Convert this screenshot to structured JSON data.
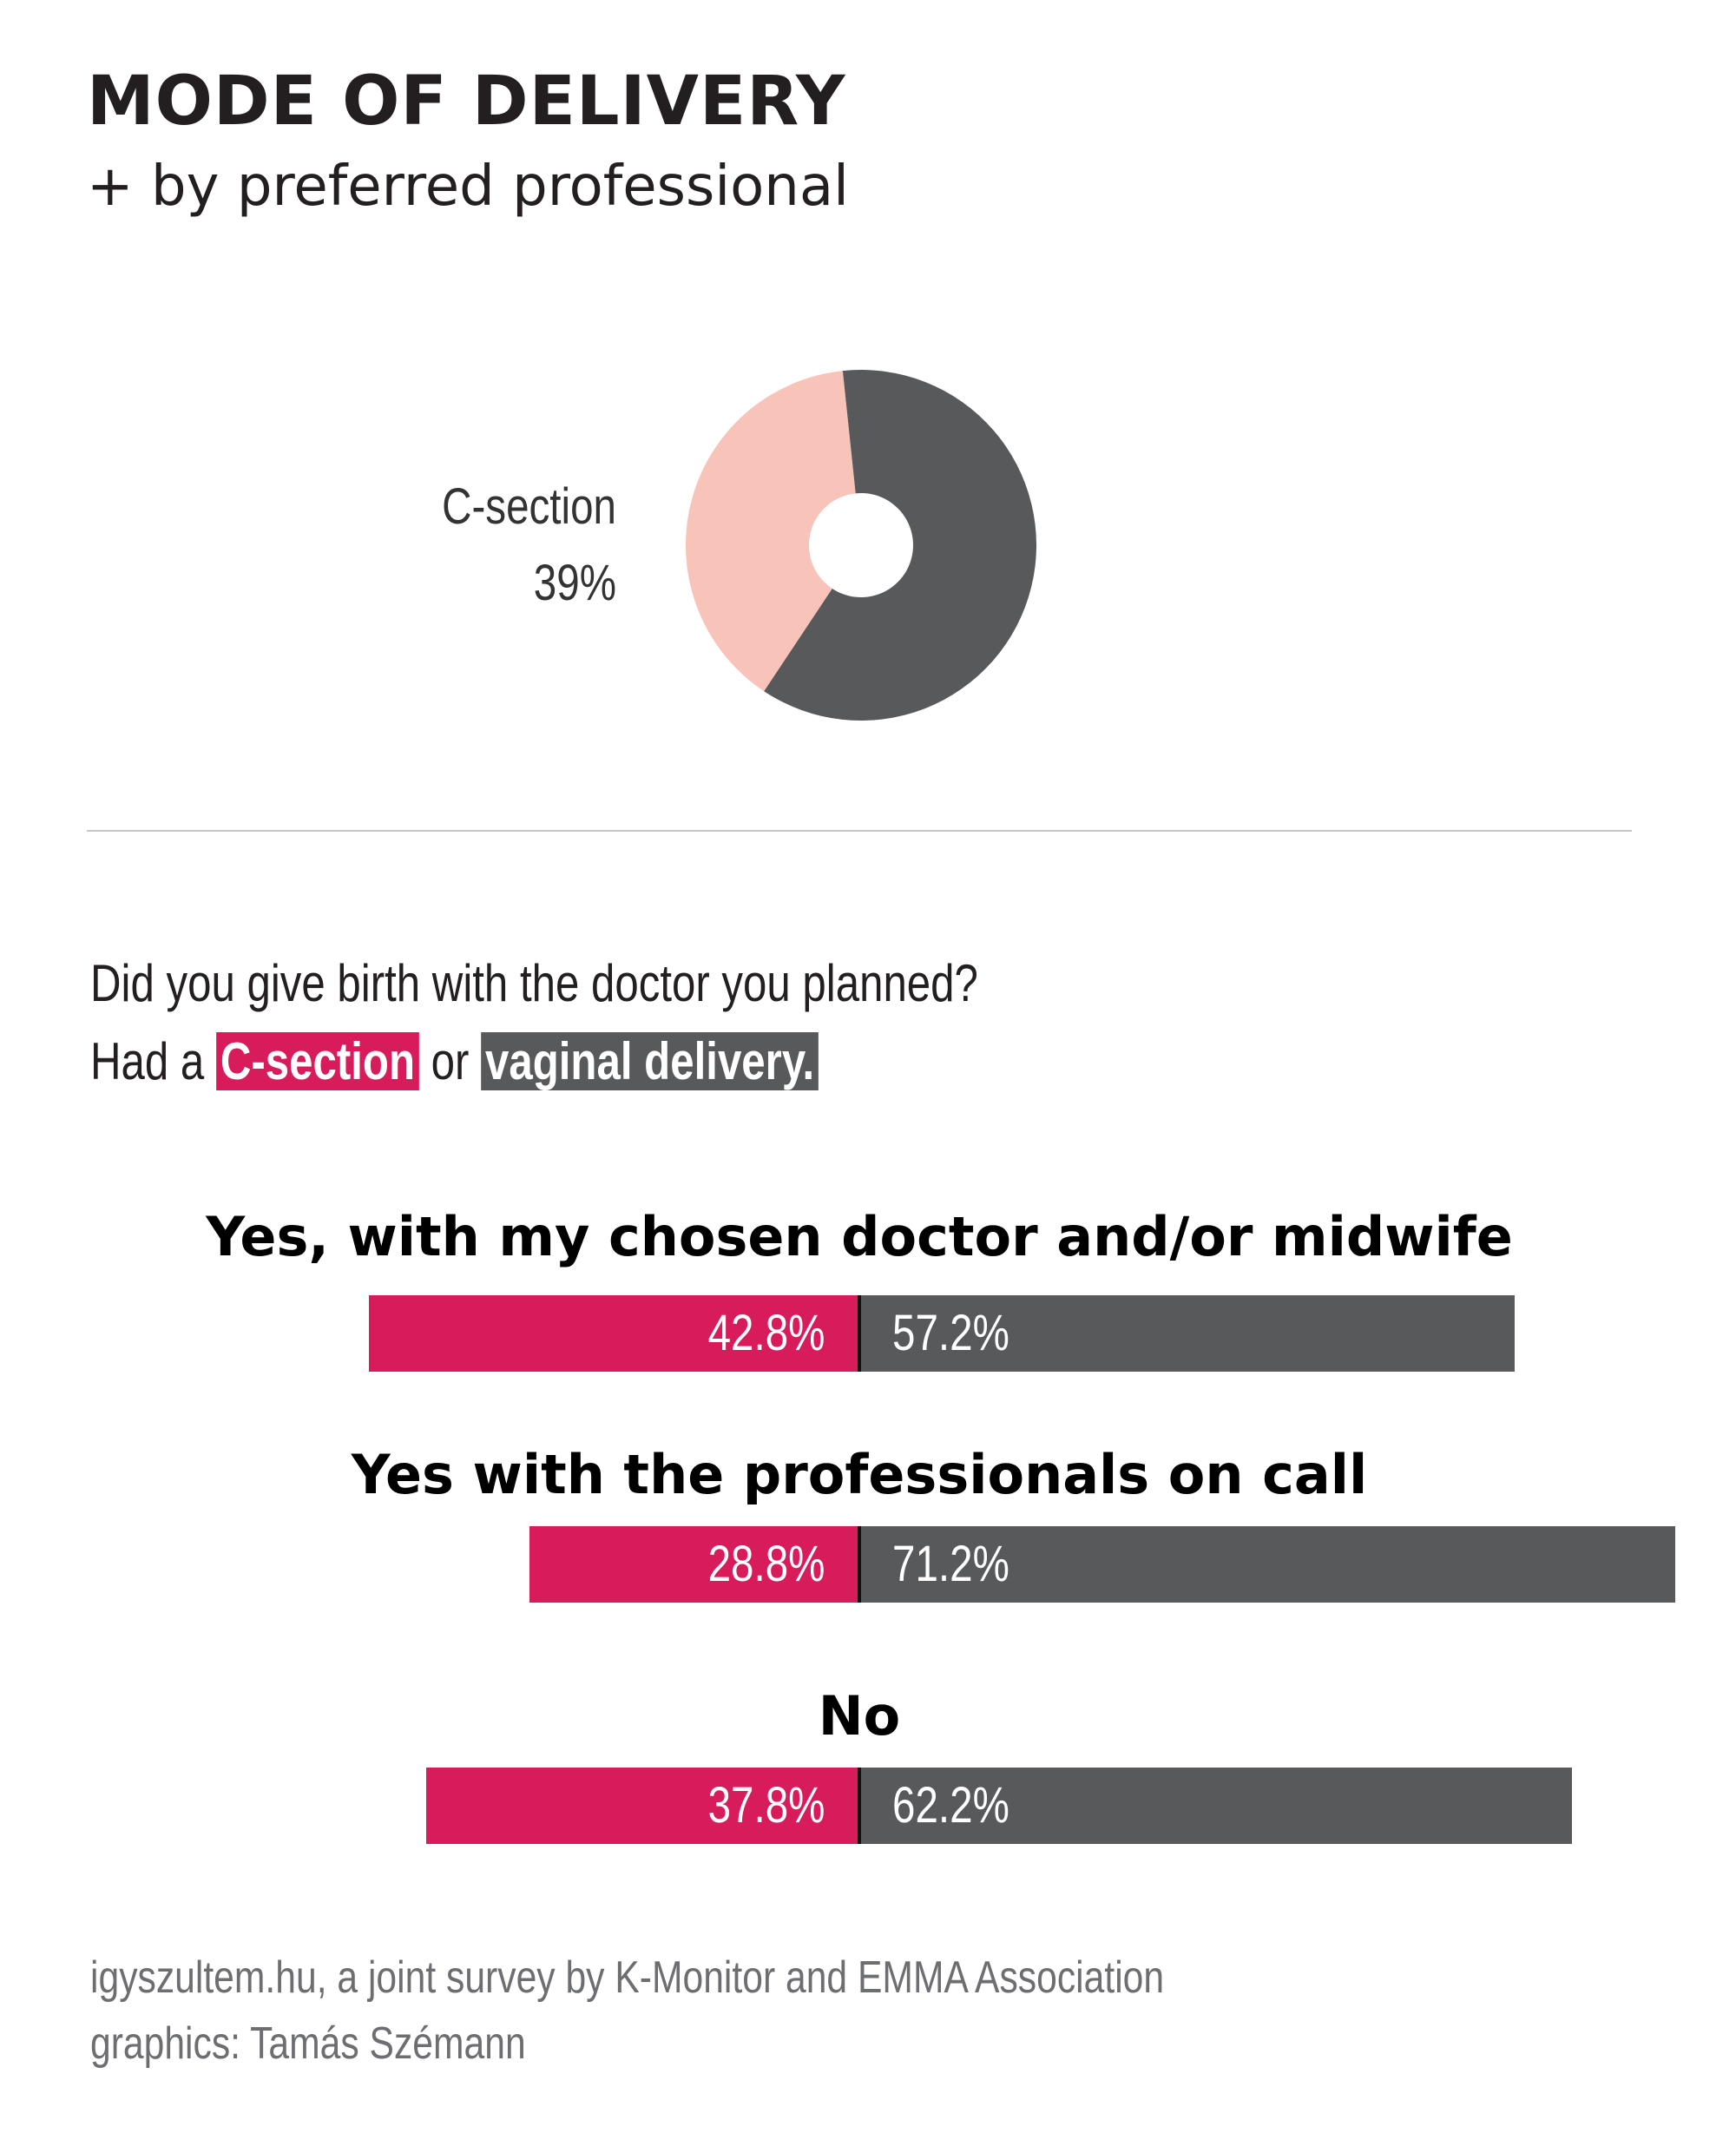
{
  "header": {
    "title": "MODE OF DELIVERY",
    "subtitle": "+ by preferred professional"
  },
  "colors": {
    "c_section_bar": "#d81b5a",
    "c_section_pie": "#f8c4b9",
    "vaginal": "#58595b"
  },
  "pie_label": {
    "name": "C-section",
    "value": "39%"
  },
  "question": {
    "line1": "Did you give birth with the doctor you planned?",
    "line2_prefix": "Had a ",
    "c_section": "C-section",
    "or": " or ",
    "vaginal": "vaginal delivery."
  },
  "chart_data": [
    {
      "type": "pie",
      "labels": [
        "C-section",
        "vaginal delivery"
      ],
      "values": [
        39,
        61
      ],
      "printed_labels": [
        "39%"
      ]
    },
    {
      "type": "bar",
      "orientation": "horizontal-diverging",
      "categories": [
        "Yes, with my chosen doctor and/or midwife",
        "Yes with the professionals on call",
        "No"
      ],
      "series": [
        {
          "name": "C-section",
          "values": [
            42.8,
            28.8,
            37.8
          ],
          "labels": [
            "42.8%",
            "28.8%",
            "37.8%"
          ]
        },
        {
          "name": "vaginal delivery.",
          "values": [
            57.2,
            71.2,
            62.2
          ],
          "labels": [
            "57.2%",
            "71.2%",
            "62.2%"
          ]
        }
      ]
    }
  ],
  "footer": {
    "source_line1": "igyszultem.hu, a joint survey by K-Monitor and EMMA Association",
    "source_line2": "graphics: Tamás Szémann"
  }
}
